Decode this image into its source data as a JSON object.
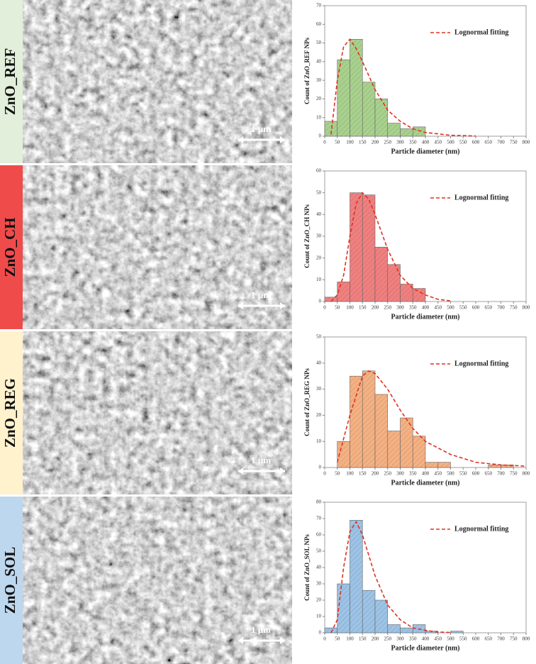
{
  "sem_panels": [
    {
      "label": "ZnO_REF",
      "scale_bar": "1 µm",
      "color": "#e2efda"
    },
    {
      "label": "ZnO_CH",
      "scale_bar": "1 µm",
      "color": "#f04b4b"
    },
    {
      "label": "ZnO_REG",
      "scale_bar": "1 µm",
      "color": "#fff2cc"
    },
    {
      "label": "ZnO_SOL",
      "scale_bar": "1 µm",
      "color": "#bdd7ee"
    }
  ],
  "chart_data": [
    {
      "type": "histogram",
      "x_label": "Particle diameter (nm)",
      "y_label": "Count of ZnO_REF NPs",
      "color": "#a9d18e",
      "bins": [
        0,
        50,
        100,
        150,
        200,
        250,
        300,
        350,
        400
      ],
      "values": [
        8,
        41,
        52,
        29,
        20,
        7,
        4,
        5
      ],
      "fit": {
        "name": "Lognormal fitting",
        "color": "#e03020",
        "x": [
          25,
          50,
          75,
          100,
          125,
          150,
          200,
          250,
          300,
          350,
          400,
          500,
          600
        ],
        "values": [
          1,
          30,
          48,
          52,
          47,
          40,
          25,
          14,
          8,
          4,
          2,
          0.5,
          0.1
        ]
      },
      "xlim": [
        0,
        800
      ],
      "xticks": [
        0,
        50,
        100,
        150,
        200,
        250,
        300,
        350,
        400,
        450,
        500,
        550,
        600,
        650,
        700,
        750,
        800
      ],
      "ylim": [
        0,
        70
      ],
      "yticks": [
        0,
        10,
        20,
        30,
        40,
        50,
        60,
        70
      ],
      "legend": "upper right"
    },
    {
      "type": "histogram",
      "x_label": "Particle diameter (nm)",
      "y_label": "Count of ZnO_CH NPs",
      "color": "#f08080",
      "bins": [
        0,
        50,
        100,
        150,
        200,
        250,
        300,
        350,
        400
      ],
      "values": [
        2,
        9,
        50,
        49,
        25,
        17,
        8,
        6
      ],
      "fit": {
        "name": "Lognormal fitting",
        "color": "#e03020",
        "x": [
          25,
          50,
          75,
          100,
          125,
          150,
          175,
          200,
          250,
          300,
          350,
          400,
          450,
          500
        ],
        "values": [
          0,
          3,
          12,
          30,
          45,
          50,
          47,
          40,
          24,
          12,
          6,
          3,
          1,
          0.3
        ]
      },
      "xlim": [
        0,
        800
      ],
      "xticks": [
        0,
        50,
        100,
        150,
        200,
        250,
        300,
        350,
        400,
        450,
        500,
        550,
        600,
        650,
        700,
        750,
        800
      ],
      "ylim": [
        0,
        60
      ],
      "yticks": [
        0,
        10,
        20,
        30,
        40,
        50,
        60
      ],
      "legend": "upper right"
    },
    {
      "type": "histogram",
      "x_label": "Particle diameter (nm)",
      "y_label": "Count of ZnO_REG NPs",
      "color": "#f4b183",
      "bins": [
        0,
        50,
        100,
        150,
        200,
        250,
        300,
        350,
        400,
        450,
        500,
        550,
        600,
        650,
        700,
        750,
        800
      ],
      "values": [
        0,
        10,
        35,
        37,
        28,
        14,
        19,
        12,
        2,
        2,
        0,
        0,
        0,
        1,
        1,
        0
      ],
      "fit": {
        "name": "Lognormal fitting",
        "color": "#e03020",
        "x": [
          50,
          100,
          150,
          175,
          200,
          250,
          300,
          350,
          400,
          500,
          600,
          700,
          800
        ],
        "values": [
          2,
          20,
          35,
          37,
          36,
          30,
          22,
          15,
          10,
          5,
          2,
          1,
          0.5
        ]
      },
      "xlim": [
        0,
        800
      ],
      "xticks": [
        0,
        50,
        100,
        150,
        200,
        250,
        300,
        350,
        400,
        450,
        500,
        550,
        600,
        650,
        700,
        750,
        800
      ],
      "ylim": [
        0,
        50
      ],
      "yticks": [
        0,
        10,
        20,
        30,
        40,
        50
      ],
      "legend": "upper right"
    },
    {
      "type": "histogram",
      "x_label": "Particle diameter (nm)",
      "y_label": "Count of ZnO_SOL NPs",
      "color": "#9dc3e6",
      "bins": [
        0,
        50,
        100,
        150,
        200,
        250,
        300,
        350,
        400,
        450,
        500,
        550
      ],
      "values": [
        3,
        30,
        69,
        26,
        20,
        5,
        3,
        5,
        1,
        0,
        1
      ],
      "fit": {
        "name": "Lognormal fitting",
        "color": "#e03020",
        "x": [
          25,
          50,
          75,
          100,
          125,
          150,
          200,
          250,
          300,
          350,
          400,
          450,
          500
        ],
        "values": [
          0,
          8,
          40,
          62,
          68,
          60,
          35,
          17,
          8,
          3,
          1.5,
          0.5,
          0.2
        ]
      },
      "xlim": [
        0,
        800
      ],
      "xticks": [
        0,
        50,
        100,
        150,
        200,
        250,
        300,
        350,
        400,
        450,
        500,
        550,
        600,
        650,
        700,
        750,
        800
      ],
      "ylim": [
        0,
        80
      ],
      "yticks": [
        0,
        10,
        20,
        30,
        40,
        50,
        60,
        70,
        80
      ],
      "legend": "upper right"
    }
  ]
}
